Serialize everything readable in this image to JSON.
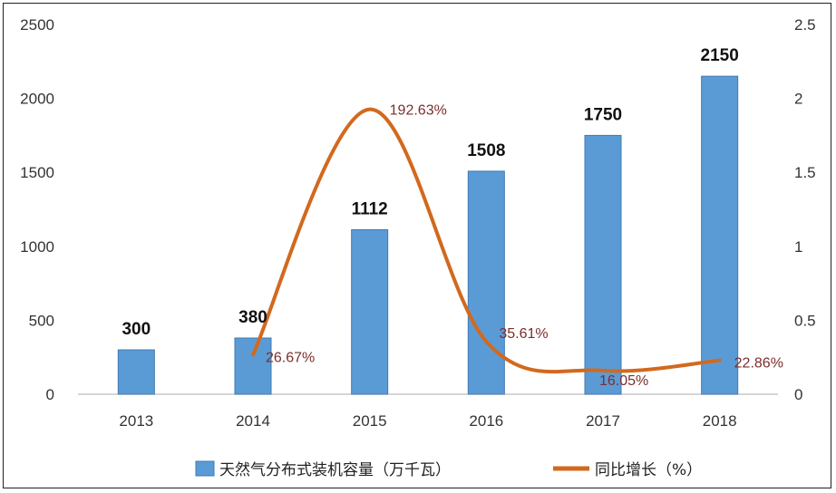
{
  "chart_data": {
    "type": "bar",
    "categories": [
      "2013",
      "2014",
      "2015",
      "2016",
      "2017",
      "2018"
    ],
    "series": [
      {
        "name": "天然气分布式装机容量（万千瓦）",
        "type": "bar",
        "axis": "left",
        "color": "#5b9bd5",
        "values": [
          300,
          380,
          1112,
          1508,
          1750,
          2150
        ],
        "data_labels": [
          "300",
          "380",
          "1112",
          "1508",
          "1750",
          "2150"
        ]
      },
      {
        "name": "同比增长（%）",
        "type": "line",
        "axis": "right",
        "color": "#d2691e",
        "values": [
          null,
          0.2667,
          1.9263,
          0.3561,
          0.1605,
          0.2286
        ],
        "data_labels": [
          "",
          "26.67%",
          "192.63%",
          "35.61%",
          "16.05%",
          "22.86%"
        ]
      }
    ],
    "y_left": {
      "min": 0,
      "max": 2500,
      "ticks": [
        "0",
        "500",
        "1000",
        "1500",
        "2000",
        "2500"
      ]
    },
    "y_right": {
      "min": 0,
      "max": 2.5,
      "ticks": [
        "0",
        "0.5",
        "1",
        "1.5",
        "2",
        "2.5"
      ]
    },
    "grid": false,
    "legend_position": "bottom"
  }
}
